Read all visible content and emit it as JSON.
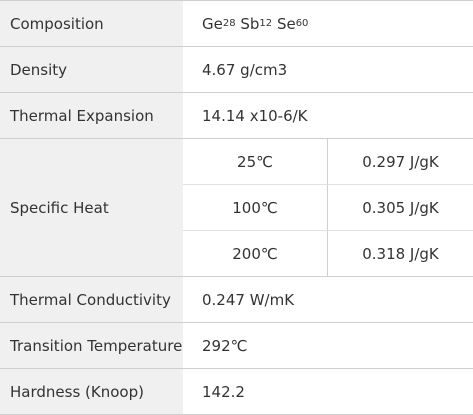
{
  "table": {
    "composition": {
      "label": "Composition",
      "el1": "Ge",
      "el1_sub": "28",
      "el2": "Sb",
      "el2_sub": "12",
      "el3": "Se",
      "el3_sub": "60"
    },
    "density": {
      "label": "Density",
      "value": "4.67 g/cm3"
    },
    "thermal_expansion": {
      "label": "Thermal Expansion",
      "value": "14.14 x10-6/K"
    },
    "specific_heat": {
      "label": "Specific Heat",
      "rows": [
        {
          "temp": "25℃",
          "value": "0.297 J/gK"
        },
        {
          "temp": "100℃",
          "value": "0.305 J/gK"
        },
        {
          "temp": "200℃",
          "value": "0.318 J/gK"
        }
      ]
    },
    "thermal_conductivity": {
      "label": "Thermal Conductivity",
      "value": "0.247 W/mK"
    },
    "transition_temperature": {
      "label": "Transition Temperature",
      "value": "292℃"
    },
    "hardness": {
      "label": "Hardness (Knoop)",
      "value": "142.2"
    }
  }
}
